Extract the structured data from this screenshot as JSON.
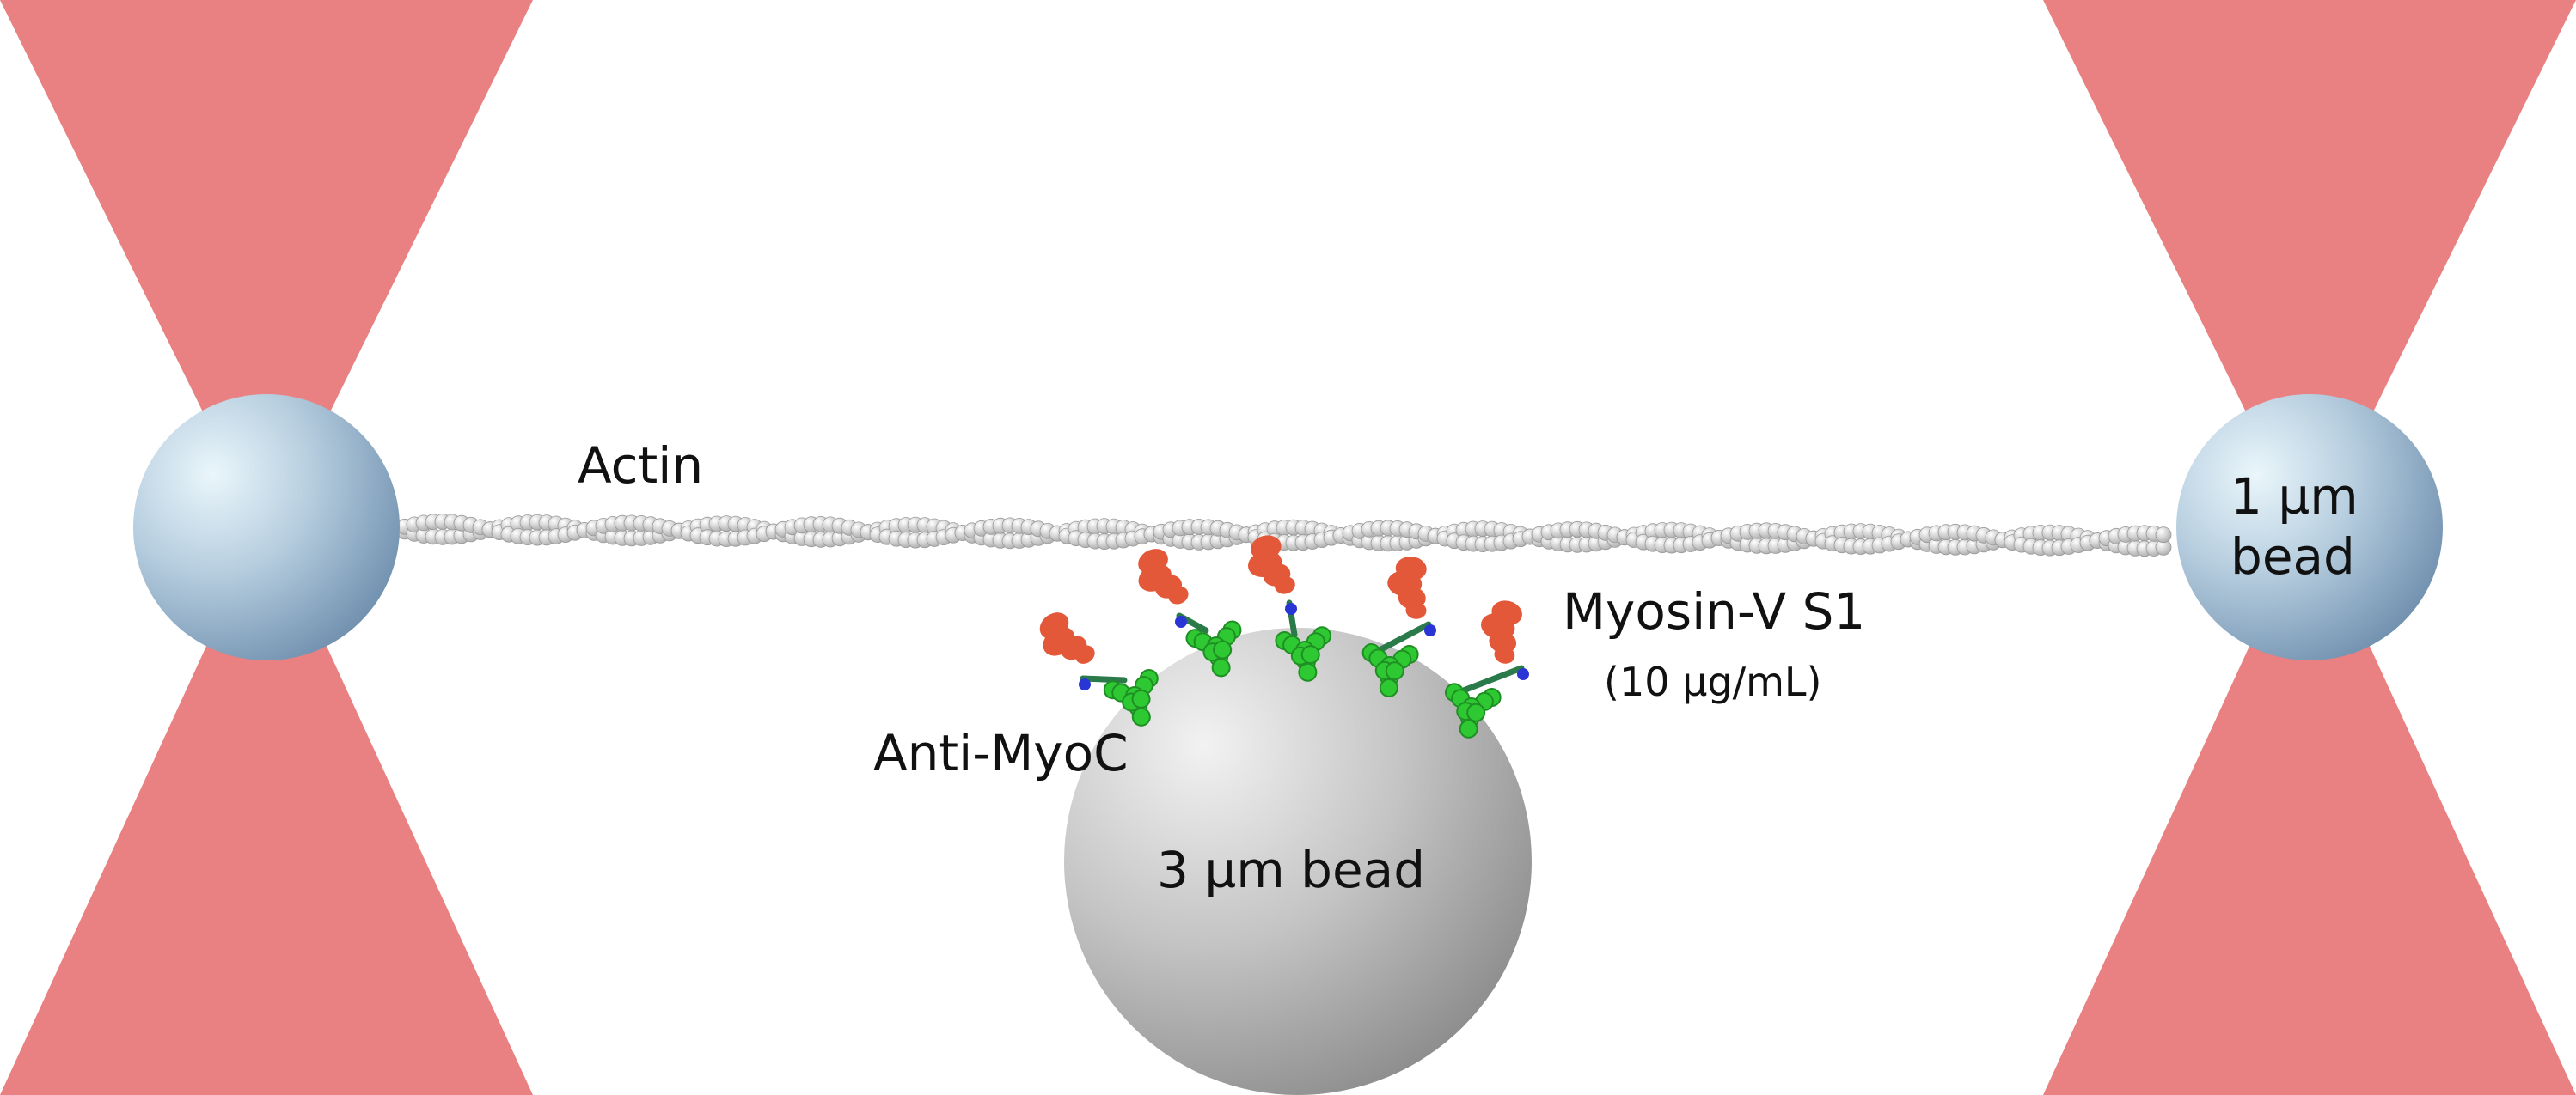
{
  "labels": {
    "actin": "Actin",
    "small_bead_line1": "1  µm",
    "small_bead_line2": "bead",
    "myosin": "Myosin-V S1",
    "concentration": "(10  µg/mL)",
    "antibody": "Anti-MyoC",
    "large_bead": "3 µm bead"
  },
  "colors": {
    "laser_beam": "#e98081",
    "trap_bead": "#9fb8cf",
    "large_bead": "#bdbdbd",
    "actin_subunit": "#d9d9d9",
    "myosin_head": "#e4583a",
    "antibody": "#2ec832",
    "linker": "#2a35d6"
  },
  "counts": {
    "myosin_antibody_pairs": 5
  }
}
